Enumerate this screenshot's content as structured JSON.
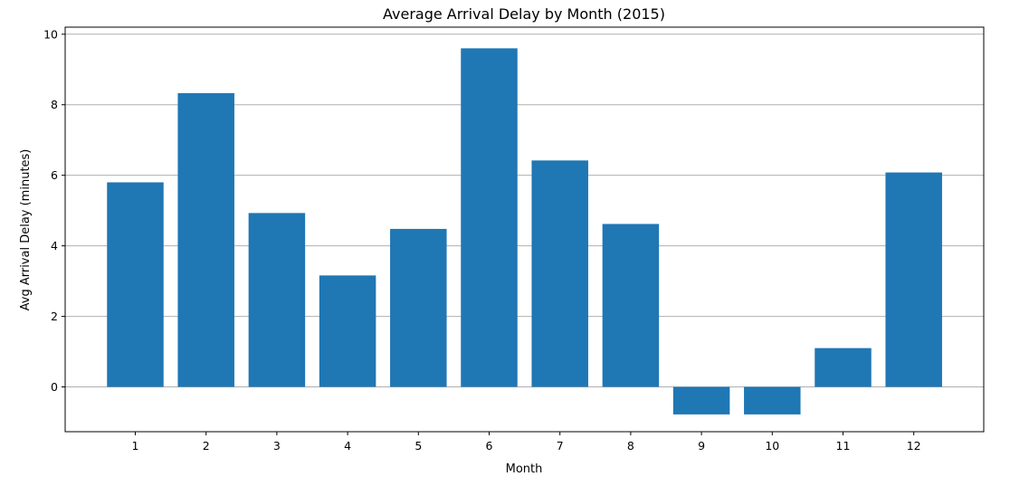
{
  "chart_data": {
    "type": "bar",
    "title": "Average Arrival Delay by Month (2015)",
    "xlabel": "Month",
    "ylabel": "Avg Arrival Delay (minutes)",
    "categories": [
      "1",
      "2",
      "3",
      "4",
      "5",
      "6",
      "7",
      "8",
      "9",
      "10",
      "11",
      "12"
    ],
    "values": [
      5.8,
      8.33,
      4.93,
      3.16,
      4.48,
      9.6,
      6.42,
      4.62,
      -0.78,
      -0.78,
      1.1,
      6.08
    ],
    "ylim": [
      -1.27,
      10.2
    ],
    "yticks": [
      0,
      2,
      4,
      6,
      8,
      10
    ],
    "grid": "y",
    "bar_color": "#1f77b4"
  }
}
